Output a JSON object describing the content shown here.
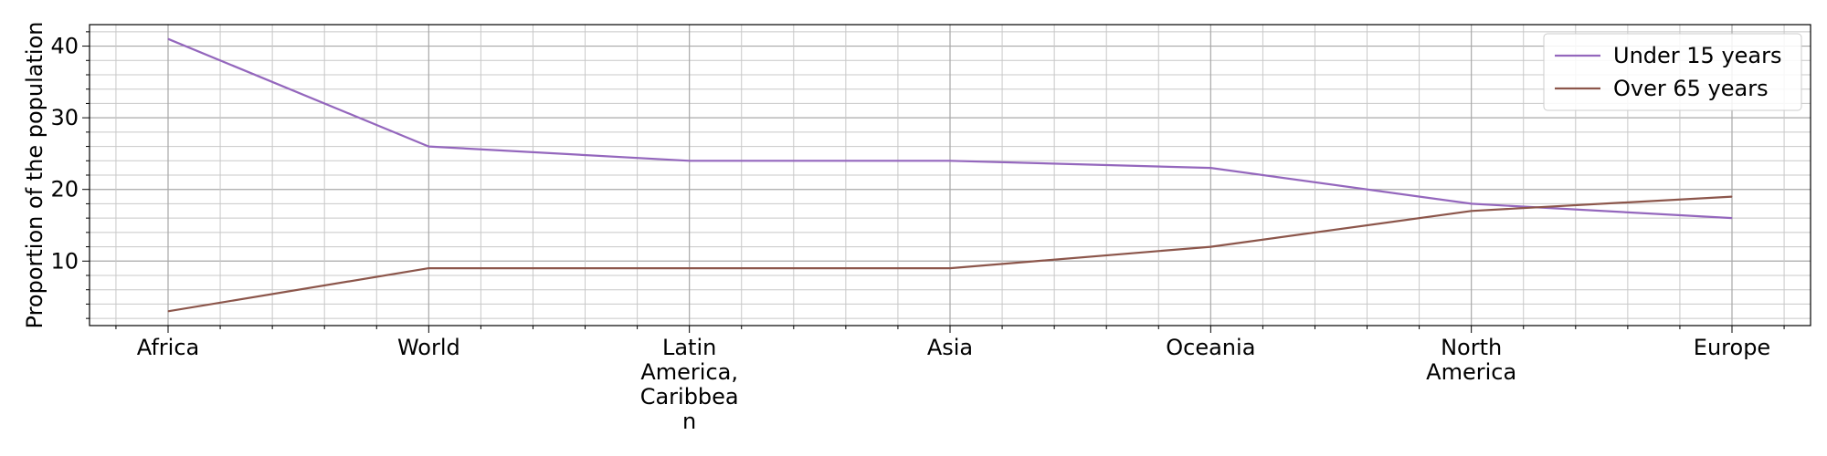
{
  "chart_data": {
    "type": "line",
    "title": "",
    "xlabel": "",
    "ylabel": "Proportion of the population",
    "categories": [
      "Africa",
      "World",
      "Latin America, Caribbean",
      "Asia",
      "Oceania",
      "North America",
      "Europe"
    ],
    "category_labels": [
      [
        "Africa"
      ],
      [
        "World"
      ],
      [
        "Latin",
        "America,",
        "Caribbea",
        "n"
      ],
      [
        "Asia"
      ],
      [
        "Oceania"
      ],
      [
        "North",
        "America"
      ],
      [
        "Europe"
      ]
    ],
    "series": [
      {
        "name": "Under 15 years",
        "color": "#9467bd",
        "values": [
          41,
          26,
          24,
          24,
          23,
          18,
          16
        ]
      },
      {
        "name": "Over 65 years",
        "color": "#8c564b",
        "values": [
          3,
          9,
          9,
          9,
          12,
          17,
          19
        ]
      }
    ],
    "yticks": [
      10,
      20,
      30,
      40
    ],
    "ylim": [
      1,
      43
    ],
    "grid": true,
    "legend_position": "top-right"
  }
}
